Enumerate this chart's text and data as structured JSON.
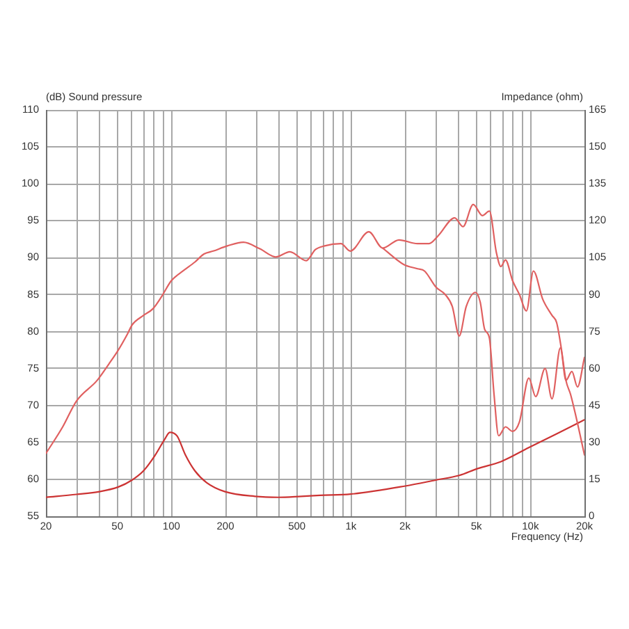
{
  "chart_data": {
    "type": "line",
    "xlabel": "Frequency (Hz)",
    "ylabel": "(dB) Sound pressure",
    "y2label": "Impedance (ohm)",
    "log": "x",
    "grid": true,
    "marker": "none",
    "line_style": "solid",
    "xlim": [
      20,
      20000
    ],
    "ylim": [
      55,
      110
    ],
    "y2lim": [
      0,
      165
    ],
    "xticks": [
      20,
      {
        "value": 30,
        "label": null
      },
      {
        "value": 40,
        "label": null
      },
      50,
      {
        "value": 60,
        "label": null
      },
      {
        "value": 70,
        "label": null
      },
      {
        "value": 80,
        "label": null
      },
      {
        "value": 90,
        "label": null
      },
      100,
      200,
      {
        "value": 300,
        "label": null
      },
      {
        "value": 400,
        "label": null
      },
      500,
      {
        "value": 600,
        "label": null
      },
      {
        "value": 700,
        "label": null
      },
      {
        "value": 800,
        "label": null
      },
      {
        "value": 900,
        "label": null
      },
      {
        "value": 1000,
        "label": "1k"
      },
      {
        "value": 2000,
        "label": "2k"
      },
      {
        "value": 3000,
        "label": null
      },
      {
        "value": 4000,
        "label": null
      },
      {
        "value": 5000,
        "label": "5k"
      },
      {
        "value": 6000,
        "label": null
      },
      {
        "value": 7000,
        "label": null
      },
      {
        "value": 8000,
        "label": null
      },
      {
        "value": 9000,
        "label": null
      },
      {
        "value": 10000,
        "label": "10k"
      },
      {
        "value": 20000,
        "label": "20k"
      }
    ],
    "yticks": [
      55,
      60,
      65,
      70,
      75,
      80,
      85,
      90,
      95,
      100,
      105,
      110
    ],
    "y2ticks": [
      0,
      15,
      30,
      45,
      60,
      75,
      90,
      105,
      120,
      135,
      150,
      165
    ],
    "series": [
      {
        "color": "#e06060",
        "x": [
          20,
          24.8,
          29.6,
          38.6,
          44.8,
          50.6,
          57,
          60.4,
          70,
          79,
          88,
          100,
          116,
          135,
          152,
          171,
          205,
          252,
          311,
          382,
          457,
          564,
          634,
          714,
          880,
          992,
          1258,
          1504,
          1852,
          2350,
          2723,
          3070,
          3785,
          4210,
          4800,
          5400,
          5910,
          6460,
          6850,
          7260,
          7950,
          8690,
          9500,
          10390,
          11700,
          13180,
          14000,
          14840,
          15770,
          16730,
          17740,
          20000
        ],
        "values": [
          63.5,
          67.1,
          70.6,
          73.4,
          75.6,
          77.5,
          79.7,
          80.9,
          82.2,
          83.1,
          84.7,
          86.9,
          88.2,
          89.4,
          90.5,
          90.9,
          91.6,
          92.1,
          91.2,
          90.1,
          90.8,
          89.6,
          91.1,
          91.6,
          91.9,
          90.9,
          93.5,
          91.3,
          92.4,
          91.9,
          91.9,
          93.0,
          95.4,
          94.2,
          97.2,
          95.7,
          96.3,
          90.7,
          88.8,
          89.7,
          86.9,
          85.0,
          82.8,
          88.2,
          84.4,
          82.2,
          81.2,
          77.8,
          73.4,
          71.5,
          69.0,
          63.3
        ]
      },
      {
        "color": "#e06060",
        "x": [
          1504,
          1964,
          2350,
          2570,
          2980,
          3356,
          3670,
          4012,
          4390,
          4945,
          5250,
          5560,
          5910,
          6270,
          6650,
          7260,
          7950,
          8690,
          9794,
          10700,
          12070,
          13180,
          14690,
          15770,
          17020,
          18290,
          20000
        ],
        "values": [
          91.3,
          89.1,
          88.5,
          88.2,
          86.0,
          85.0,
          83.4,
          79.4,
          83.4,
          85.3,
          84.0,
          80.3,
          79.1,
          71.5,
          65.9,
          67.1,
          66.5,
          67.8,
          73.7,
          71.2,
          75.0,
          70.9,
          77.8,
          73.4,
          74.6,
          72.5,
          76.5
        ]
      },
      {
        "color": "#cc3333",
        "axis": "y2",
        "x": [
          20,
          29.6,
          39.7,
          50.6,
          60.3,
          70,
          81,
          91.5,
          98,
          107.6,
          119.5,
          135,
          157,
          199,
          292,
          394,
          530,
          674,
          996,
          2010,
          2970,
          4012,
          5085,
          6850,
          9794,
          14000,
          20000
        ],
        "values": [
          7.7,
          8.9,
          10.0,
          11.9,
          14.7,
          18.5,
          24.7,
          31.1,
          34.1,
          32.6,
          25.0,
          18.5,
          13.7,
          10.0,
          8.1,
          7.7,
          8.1,
          8.5,
          9.0,
          12.3,
          14.7,
          16.6,
          19.4,
          22.2,
          27.9,
          33.5,
          39.2
        ]
      }
    ]
  }
}
